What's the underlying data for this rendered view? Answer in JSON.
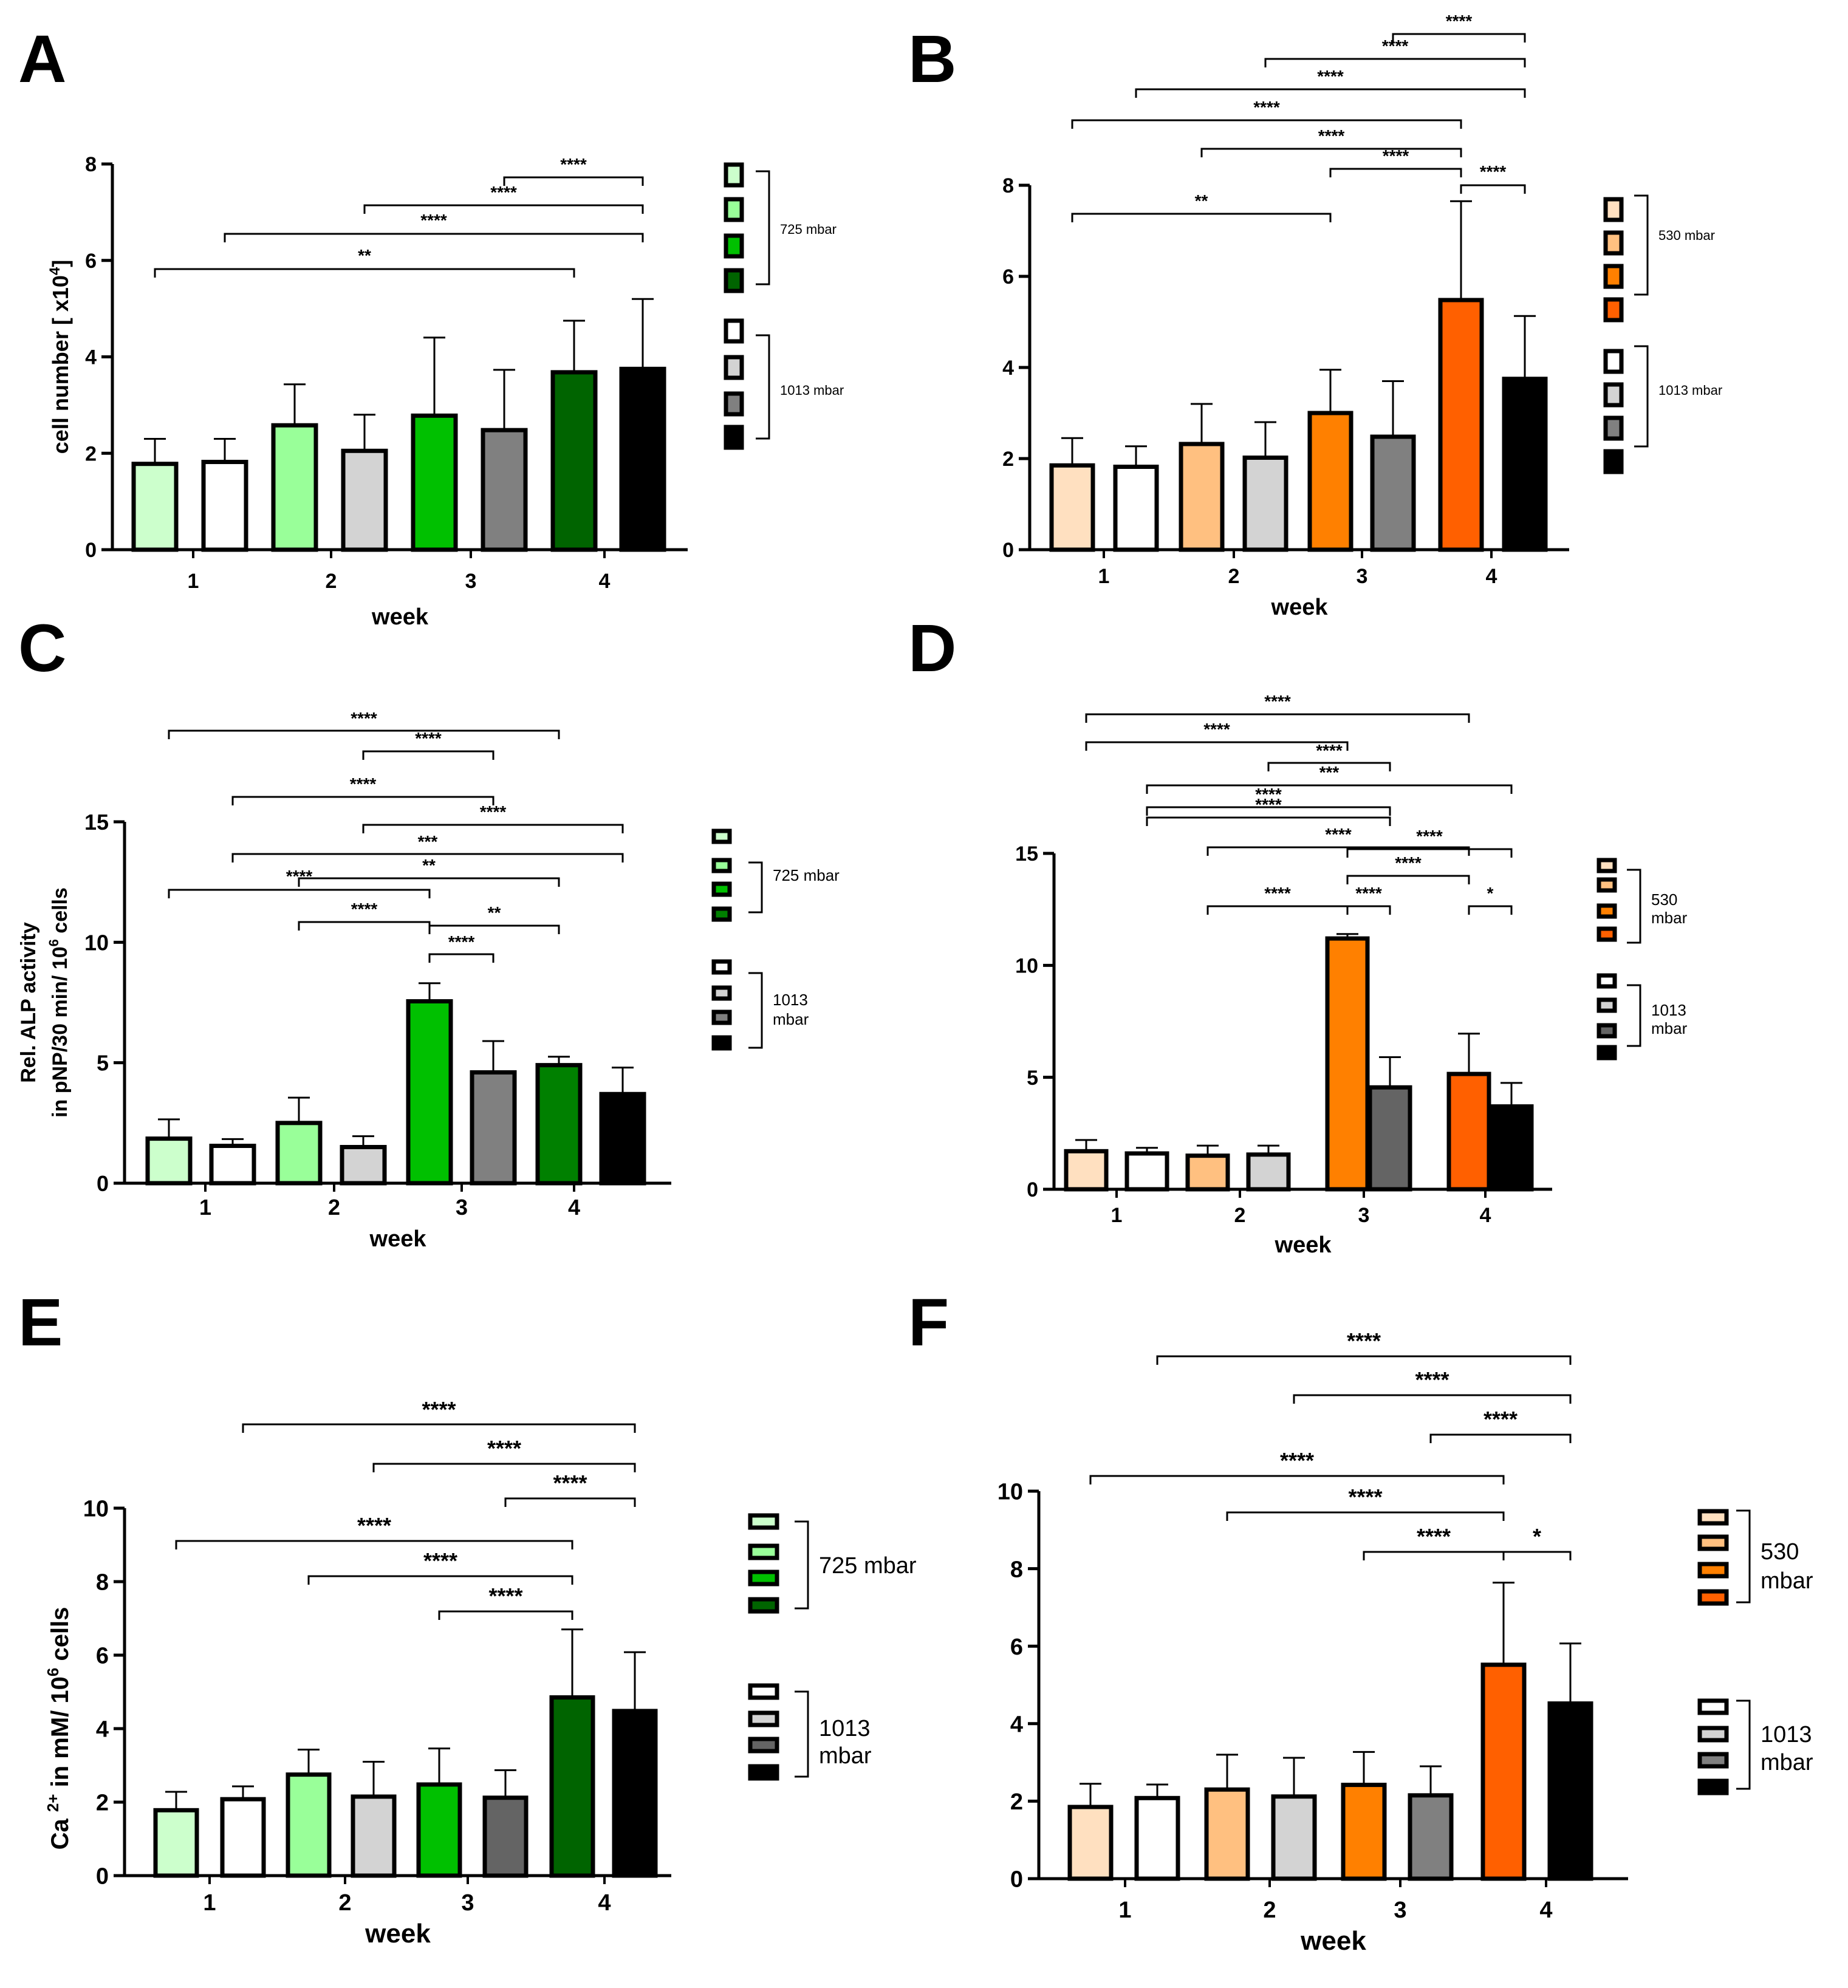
{
  "figure": {
    "description_visible": false
  },
  "chart_data": [
    {
      "id": "A",
      "panel_label": "A",
      "type": "bar",
      "ylabel": "cell number [ x10",
      "ylabel_sup": "4",
      "ylabel_end": "]",
      "xlabel": "week",
      "ylim": [
        0,
        8
      ],
      "yticks": [
        0,
        2,
        4,
        6,
        8
      ],
      "categories": [
        "1",
        "2",
        "3",
        "4"
      ],
      "bars": [
        {
          "week": "1",
          "condition": "725 mbar",
          "value": 1.78,
          "error": 0.52,
          "color": "#ccffcc"
        },
        {
          "week": "1",
          "condition": "1013 mbar",
          "value": 1.82,
          "error": 0.48,
          "color": "#ffffff"
        },
        {
          "week": "2",
          "condition": "725 mbar",
          "value": 2.58,
          "error": 0.85,
          "color": "#99ff99"
        },
        {
          "week": "2",
          "condition": "1013 mbar",
          "value": 2.05,
          "error": 0.75,
          "color": "#d3d3d3"
        },
        {
          "week": "3",
          "condition": "725 mbar",
          "value": 2.78,
          "error": 1.62,
          "color": "#00c000"
        },
        {
          "week": "3",
          "condition": "1013 mbar",
          "value": 2.48,
          "error": 1.25,
          "color": "#808080"
        },
        {
          "week": "4",
          "condition": "725 mbar",
          "value": 3.68,
          "error": 1.07,
          "color": "#006400"
        },
        {
          "week": "4",
          "condition": "1013 mbar",
          "value": 3.75,
          "error": 1.45,
          "color": "#000000"
        }
      ],
      "significance": [
        {
          "from": 0,
          "to": 6,
          "label": "**"
        },
        {
          "from": 1,
          "to": 7,
          "label": "****"
        },
        {
          "from": 3,
          "to": 7,
          "label": "****"
        },
        {
          "from": 5,
          "to": 7,
          "label": "****"
        }
      ],
      "legend": [
        {
          "label": "725 mbar",
          "colors": [
            "#ccffcc",
            "#99ff99",
            "#00c000",
            "#006400"
          ]
        },
        {
          "label": "1013 mbar",
          "colors": [
            "#ffffff",
            "#d3d3d3",
            "#808080",
            "#000000"
          ]
        }
      ]
    },
    {
      "id": "B",
      "panel_label": "B",
      "type": "bar",
      "ylabel": "",
      "xlabel": "week",
      "ylim": [
        0,
        8
      ],
      "yticks": [
        0,
        2,
        4,
        6,
        8
      ],
      "categories": [
        "1",
        "2",
        "3",
        "4"
      ],
      "bars": [
        {
          "week": "1",
          "condition": "530 mbar",
          "value": 1.85,
          "error": 0.6,
          "color": "#ffe0c0"
        },
        {
          "week": "1",
          "condition": "1013 mbar",
          "value": 1.82,
          "error": 0.45,
          "color": "#ffffff"
        },
        {
          "week": "2",
          "condition": "530 mbar",
          "value": 2.32,
          "error": 0.88,
          "color": "#ffc080"
        },
        {
          "week": "2",
          "condition": "1013 mbar",
          "value": 2.02,
          "error": 0.78,
          "color": "#d3d3d3"
        },
        {
          "week": "3",
          "condition": "530 mbar",
          "value": 3.0,
          "error": 0.95,
          "color": "#ff8000"
        },
        {
          "week": "3",
          "condition": "1013 mbar",
          "value": 2.48,
          "error": 1.22,
          "color": "#808080"
        },
        {
          "week": "4",
          "condition": "530 mbar",
          "value": 5.48,
          "error": 2.17,
          "color": "#ff6000"
        },
        {
          "week": "4",
          "condition": "1013 mbar",
          "value": 3.75,
          "error": 1.38,
          "color": "#000000"
        }
      ],
      "significance": [
        {
          "from": 0,
          "to": 4,
          "label": "**"
        },
        {
          "from": 6,
          "to": 7,
          "label": "****"
        },
        {
          "from": 4,
          "to": 6,
          "label": "****"
        },
        {
          "from": 2,
          "to": 6,
          "label": "****"
        },
        {
          "from": 0,
          "to": 6,
          "label": "****"
        },
        {
          "from": 1,
          "to": 7,
          "label": "****"
        },
        {
          "from": 3,
          "to": 7,
          "label": "****"
        },
        {
          "from": 5,
          "to": 7,
          "label": "****"
        }
      ],
      "legend": [
        {
          "label": "530 mbar",
          "colors": [
            "#ffe0c0",
            "#ffc080",
            "#ff8000",
            "#ff6000"
          ]
        },
        {
          "label": "1013 mbar",
          "colors": [
            "#ffffff",
            "#d3d3d3",
            "#808080",
            "#000000"
          ]
        }
      ]
    },
    {
      "id": "C",
      "panel_label": "C",
      "type": "bar",
      "ylabel": "Rel. ALP activity",
      "ylabel2": "in pNP/30 min/ 10",
      "ylabel2_sup": "6",
      "ylabel2_end": " cells",
      "xlabel": "week",
      "ylim": [
        0,
        15
      ],
      "yticks": [
        0,
        5,
        10,
        15
      ],
      "categories": [
        "1",
        "2",
        "3",
        "4"
      ],
      "bars": [
        {
          "week": "1",
          "condition": "725 mbar",
          "value": 1.85,
          "error": 0.8,
          "color": "#ccffcc"
        },
        {
          "week": "1",
          "condition": "1013 mbar",
          "value": 1.55,
          "error": 0.28,
          "color": "#ffffff"
        },
        {
          "week": "2",
          "condition": "725 mbar",
          "value": 2.5,
          "error": 1.05,
          "color": "#99ff99"
        },
        {
          "week": "2",
          "condition": "1013 mbar",
          "value": 1.5,
          "error": 0.45,
          "color": "#d3d3d3"
        },
        {
          "week": "3",
          "condition": "725 mbar",
          "value": 7.55,
          "error": 0.75,
          "color": "#00c000"
        },
        {
          "week": "3",
          "condition": "1013 mbar",
          "value": 4.6,
          "error": 1.3,
          "color": "#808080"
        },
        {
          "week": "4",
          "condition": "725 mbar",
          "value": 4.9,
          "error": 0.35,
          "color": "#008000"
        },
        {
          "week": "4",
          "condition": "1013 mbar",
          "value": 3.7,
          "error": 1.1,
          "color": "#000000"
        }
      ],
      "significance": [
        {
          "from": 4,
          "to": 5,
          "label": "****"
        },
        {
          "from": 2,
          "to": 4,
          "label": "****"
        },
        {
          "from": 4,
          "to": 6,
          "label": "**"
        },
        {
          "from": 0,
          "to": 4,
          "label": "****"
        },
        {
          "from": 2,
          "to": 6,
          "label": "**"
        },
        {
          "from": 1,
          "to": 7,
          "label": "***"
        },
        {
          "from": 3,
          "to": 7,
          "label": "****"
        },
        {
          "from": 1,
          "to": 5,
          "label": "****"
        },
        {
          "from": 3,
          "to": 5,
          "label": "****"
        },
        {
          "from": 0,
          "to": 6,
          "label": "****"
        }
      ],
      "legend": [
        {
          "label": "725 mbar",
          "colors": [
            "#ccffcc",
            "#99ff99",
            "#00c000",
            "#008000"
          ]
        },
        {
          "label": "1013",
          "label2": "mbar",
          "colors": [
            "#ffffff",
            "#d3d3d3",
            "#808080",
            "#000000"
          ]
        }
      ]
    },
    {
      "id": "D",
      "panel_label": "D",
      "type": "bar",
      "ylabel": "",
      "xlabel": "week",
      "ylim": [
        0,
        15
      ],
      "yticks": [
        0,
        5,
        10,
        15
      ],
      "categories": [
        "1",
        "2",
        "3",
        "4"
      ],
      "bars": [
        {
          "week": "1",
          "condition": "530 mbar",
          "value": 1.7,
          "error": 0.5,
          "color": "#ffe0c0"
        },
        {
          "week": "1",
          "condition": "1013 mbar",
          "value": 1.6,
          "error": 0.25,
          "color": "#ffffff"
        },
        {
          "week": "2",
          "condition": "530 mbar",
          "value": 1.5,
          "error": 0.45,
          "color": "#ffc080"
        },
        {
          "week": "2",
          "condition": "1013 mbar",
          "value": 1.55,
          "error": 0.4,
          "color": "#d3d3d3"
        },
        {
          "week": "3",
          "condition": "530 mbar",
          "value": 11.2,
          "error": 0.2,
          "color": "#ff8000"
        },
        {
          "week": "3",
          "condition": "1013 mbar",
          "value": 4.55,
          "error": 1.35,
          "color": "#646464"
        },
        {
          "week": "4",
          "condition": "530 mbar",
          "value": 5.15,
          "error": 1.8,
          "color": "#ff6000"
        },
        {
          "week": "4",
          "condition": "1013 mbar",
          "value": 3.7,
          "error": 1.05,
          "color": "#000000"
        }
      ],
      "significance": [
        {
          "from": 2,
          "to": 4,
          "label": "****"
        },
        {
          "from": 4,
          "to": 5,
          "label": "****"
        },
        {
          "from": 6,
          "to": 7,
          "label": "*"
        },
        {
          "from": 4,
          "to": 6,
          "label": "****"
        },
        {
          "from": 4,
          "to": 7,
          "label": "****"
        },
        {
          "from": 2,
          "to": 6,
          "label": "****"
        },
        {
          "from": 1,
          "to": 5,
          "label": "****"
        },
        {
          "from": 1,
          "to": 5,
          "label": "****"
        },
        {
          "from": 1,
          "to": 7,
          "label": "***"
        },
        {
          "from": 3,
          "to": 5,
          "label": "****"
        },
        {
          "from": 0,
          "to": 4,
          "label": "****"
        },
        {
          "from": 0,
          "to": 6,
          "label": "****"
        }
      ],
      "legend": [
        {
          "label": "530",
          "label2": "mbar",
          "colors": [
            "#ffe0c0",
            "#ffc080",
            "#ff8000",
            "#ff6000"
          ]
        },
        {
          "label": "1013",
          "label2": "mbar",
          "colors": [
            "#ffffff",
            "#d3d3d3",
            "#646464",
            "#000000"
          ]
        }
      ]
    },
    {
      "id": "E",
      "panel_label": "E",
      "type": "bar",
      "ylabel": "Ca ",
      "ylabel_sup": "2+",
      "ylabel_mid": " in mM/ 10",
      "ylabel_sup2": "6",
      "ylabel_end": " cells",
      "xlabel": "week",
      "ylim": [
        0,
        10
      ],
      "yticks": [
        0,
        2,
        4,
        6,
        8,
        10
      ],
      "categories": [
        "1",
        "2",
        "3",
        "4"
      ],
      "bars": [
        {
          "week": "1",
          "condition": "725 mbar",
          "value": 1.78,
          "error": 0.5,
          "color": "#ccffcc"
        },
        {
          "week": "1",
          "condition": "1013 mbar",
          "value": 2.08,
          "error": 0.35,
          "color": "#ffffff"
        },
        {
          "week": "2",
          "condition": "725 mbar",
          "value": 2.75,
          "error": 0.68,
          "color": "#99ff99"
        },
        {
          "week": "2",
          "condition": "1013 mbar",
          "value": 2.15,
          "error": 0.95,
          "color": "#d3d3d3"
        },
        {
          "week": "3",
          "condition": "725 mbar",
          "value": 2.48,
          "error": 0.98,
          "color": "#00c000"
        },
        {
          "week": "3",
          "condition": "1013 mbar",
          "value": 2.12,
          "error": 0.75,
          "color": "#646464"
        },
        {
          "week": "4",
          "condition": "725 mbar",
          "value": 4.85,
          "error": 1.85,
          "color": "#006400"
        },
        {
          "week": "4",
          "condition": "1013 mbar",
          "value": 4.48,
          "error": 1.6,
          "color": "#000000"
        }
      ],
      "significance": [
        {
          "from": 4,
          "to": 6,
          "label": "****"
        },
        {
          "from": 2,
          "to": 6,
          "label": "****"
        },
        {
          "from": 0,
          "to": 6,
          "label": "****"
        },
        {
          "from": 5,
          "to": 7,
          "label": "****"
        },
        {
          "from": 3,
          "to": 7,
          "label": "****"
        },
        {
          "from": 1,
          "to": 7,
          "label": "****"
        }
      ],
      "legend": [
        {
          "label": "725 mbar",
          "colors": [
            "#ccffcc",
            "#99ff99",
            "#00c000",
            "#006400"
          ]
        },
        {
          "label": "1013",
          "label2": "mbar",
          "colors": [
            "#ffffff",
            "#d3d3d3",
            "#646464",
            "#000000"
          ]
        }
      ]
    },
    {
      "id": "F",
      "panel_label": "F",
      "type": "bar",
      "ylabel": "",
      "xlabel": "week",
      "ylim": [
        0,
        10
      ],
      "yticks": [
        0,
        2,
        4,
        6,
        8,
        10
      ],
      "categories": [
        "1",
        "2",
        "3",
        "4"
      ],
      "bars": [
        {
          "week": "1",
          "condition": "530 mbar",
          "value": 1.85,
          "error": 0.6,
          "color": "#ffe0c0"
        },
        {
          "week": "1",
          "condition": "1013 mbar",
          "value": 2.08,
          "error": 0.35,
          "color": "#ffffff"
        },
        {
          "week": "2",
          "condition": "530 mbar",
          "value": 2.3,
          "error": 0.9,
          "color": "#ffc080"
        },
        {
          "week": "2",
          "condition": "1013 mbar",
          "value": 2.12,
          "error": 1.0,
          "color": "#d3d3d3"
        },
        {
          "week": "3",
          "condition": "530 mbar",
          "value": 2.42,
          "error": 0.85,
          "color": "#ff8000"
        },
        {
          "week": "3",
          "condition": "1013 mbar",
          "value": 2.15,
          "error": 0.75,
          "color": "#808080"
        },
        {
          "week": "4",
          "condition": "530 mbar",
          "value": 5.52,
          "error": 2.12,
          "color": "#ff6000"
        },
        {
          "week": "4",
          "condition": "1013 mbar",
          "value": 4.52,
          "error": 1.55,
          "color": "#000000"
        }
      ],
      "significance": [
        {
          "from": 4,
          "to": 6,
          "label": "****"
        },
        {
          "from": 6,
          "to": 7,
          "label": "*"
        },
        {
          "from": 2,
          "to": 6,
          "label": "****"
        },
        {
          "from": 0,
          "to": 6,
          "label": "****"
        },
        {
          "from": 5,
          "to": 7,
          "label": "****"
        },
        {
          "from": 3,
          "to": 7,
          "label": "****"
        },
        {
          "from": 1,
          "to": 7,
          "label": "****"
        }
      ],
      "legend": [
        {
          "label": "530",
          "label2": "mbar",
          "colors": [
            "#ffe0c0",
            "#ffc080",
            "#ff8000",
            "#ff6000"
          ]
        },
        {
          "label": "1013",
          "label2": "mbar",
          "colors": [
            "#ffffff",
            "#d3d3d3",
            "#808080",
            "#000000"
          ]
        }
      ]
    }
  ]
}
